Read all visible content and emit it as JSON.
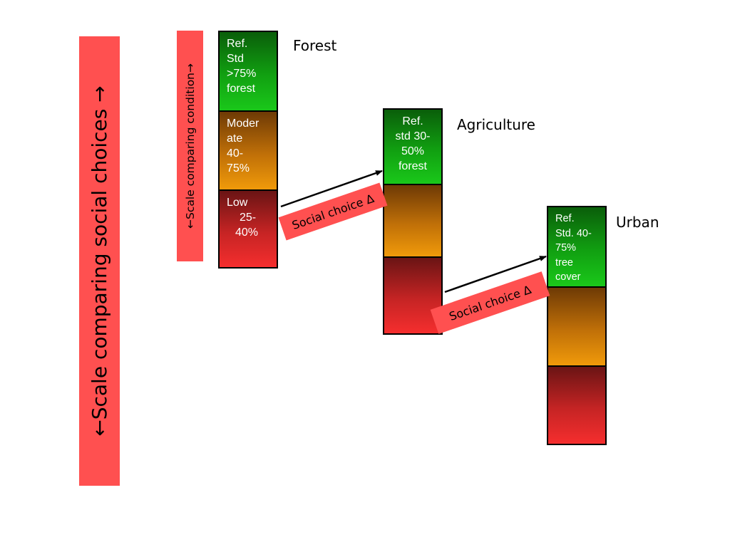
{
  "scales": {
    "social_choices": "←Scale comparing social choices →",
    "condition": "←Scale comparing condition→"
  },
  "columns": {
    "forest": {
      "label": "Forest",
      "ref": [
        "Ref.",
        "Std",
        ">75%",
        "forest"
      ],
      "moderate": [
        "Moder",
        "ate",
        "40-",
        "75%"
      ],
      "low": [
        "Low",
        "25-",
        "40%"
      ]
    },
    "agriculture": {
      "label": "Agriculture",
      "ref": [
        "Ref.",
        "std 30-",
        "50%",
        "forest"
      ]
    },
    "urban": {
      "label": "Urban",
      "ref": [
        "Ref.",
        "Std. 40-",
        "75%",
        "tree",
        "cover"
      ]
    }
  },
  "social_choice_label": "Social choice Δ",
  "colors": {
    "scale_bar": "#ff5050",
    "reference": "#11a011",
    "moderate": "#f09a0a",
    "low": "#f52e2e"
  }
}
